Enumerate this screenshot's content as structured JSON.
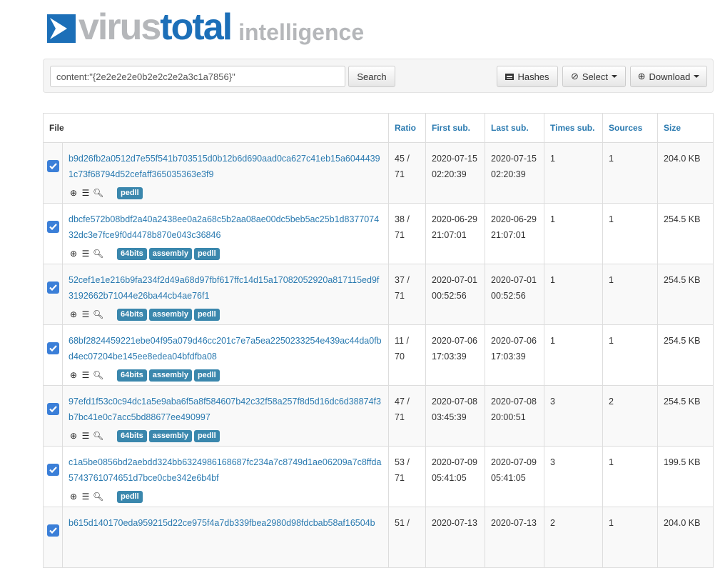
{
  "logo": {
    "part1": "virus",
    "part2": "total",
    "part3": "intelligence",
    "colors": {
      "blue": "#1c6fb8",
      "gray": "#b5b7ba"
    }
  },
  "search": {
    "value": "content:\"{2e2e2e2e0b2e2c2e2a3c1a7856}\"",
    "button": "Search"
  },
  "toolbar": {
    "hashes": "Hashes",
    "select": "Select",
    "download": "Download"
  },
  "table": {
    "headers": [
      "File",
      "Ratio",
      "First sub.",
      "Last sub.",
      "Times sub.",
      "Sources",
      "Size"
    ],
    "rows": [
      {
        "checked": true,
        "hash": "b9d26fb2a0512d7e55f541b703515d0b12b6d690aad0ca627c41eb15a60444391c73f68794d52cefaff365035363e3f9",
        "tags": [
          "pedll"
        ],
        "ratio": "45 / 71",
        "first": "2020-07-15 02:20:39",
        "last": "2020-07-15 02:20:39",
        "times": "1",
        "sources": "1",
        "size": "204.0 KB"
      },
      {
        "checked": true,
        "hash": "dbcfe572b08bdf2a40a2438ee0a2a68c5b2aa08ae00dc5beb5ac25b1d837707432dc3e7fce9f0d4478b870e043c36846",
        "tags": [
          "64bits",
          "assembly",
          "pedll"
        ],
        "ratio": "38 / 71",
        "first": "2020-06-29 21:07:01",
        "last": "2020-06-29 21:07:01",
        "times": "1",
        "sources": "1",
        "size": "254.5 KB"
      },
      {
        "checked": true,
        "hash": "52cef1e1e216b9fa234f2d49a68d97fbf617ffc14d15a17082052920a817115ed9f3192662b71044e26ba44cb4ae76f1",
        "tags": [
          "64bits",
          "assembly",
          "pedll"
        ],
        "ratio": "37 / 71",
        "first": "2020-07-01 00:52:56",
        "last": "2020-07-01 00:52:56",
        "times": "1",
        "sources": "1",
        "size": "254.5 KB"
      },
      {
        "checked": true,
        "hash": "68bf2824459221ebe04f95a079d46cc201c7e7a5ea2250233254e439ac44da0fbd4ec07204be145ee8edea04bfdfba08",
        "tags": [
          "64bits",
          "assembly",
          "pedll"
        ],
        "ratio": "11 / 70",
        "first": "2020-07-06 17:03:39",
        "last": "2020-07-06 17:03:39",
        "times": "1",
        "sources": "1",
        "size": "254.5 KB"
      },
      {
        "checked": true,
        "hash": "97efd1f53c0c94dc1a5e9aba6f5a8f584607b42c32f58a257f8d5d16dc6d38874f3b7bc41e0c7acc5bd88677ee490997",
        "tags": [
          "64bits",
          "assembly",
          "pedll"
        ],
        "ratio": "47 / 71",
        "first": "2020-07-08 03:45:39",
        "last": "2020-07-08 20:00:51",
        "times": "3",
        "sources": "2",
        "size": "254.5 KB"
      },
      {
        "checked": true,
        "hash": "c1a5be0856bd2aebdd324bb6324986168687fc234a7c8749d1ae06209a7c8ffda5743761074651d7bce0cbe342e6b4bf",
        "tags": [
          "pedll"
        ],
        "ratio": "53 / 71",
        "first": "2020-07-09 05:41:05",
        "last": "2020-07-09 05:41:05",
        "times": "3",
        "sources": "1",
        "size": "199.5 KB"
      },
      {
        "checked": true,
        "hash": "b615d140170eda959215d22ce975f4a7db339fbea2980d98fdcbab58af16504b",
        "tags": [],
        "ratio": "51 /",
        "first": "2020-07-13",
        "last": "2020-07-13",
        "times": "2",
        "sources": "1",
        "size": "204.0 KB"
      }
    ]
  }
}
